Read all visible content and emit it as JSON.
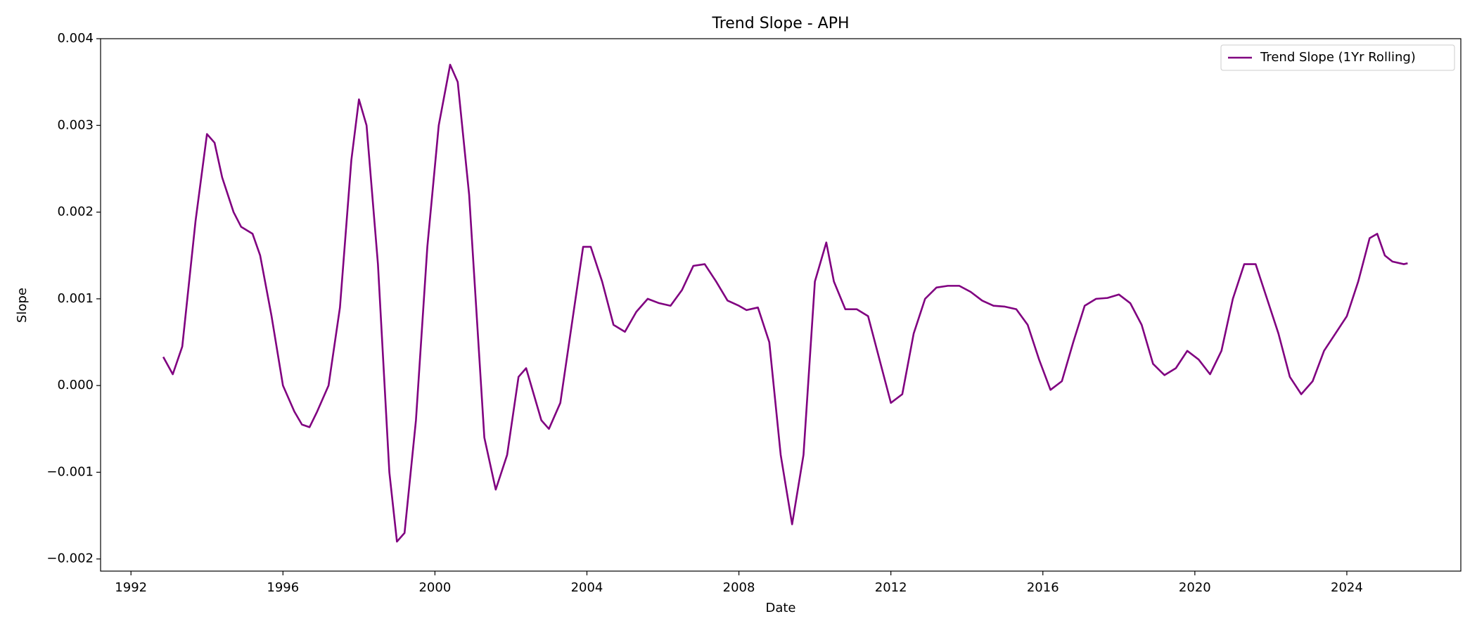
{
  "chart_data": {
    "type": "line",
    "title": "Trend Slope - APH",
    "x_label": "Date",
    "y_label": "Slope",
    "xlim": [
      1991.2,
      2027.0
    ],
    "xticks": [
      1992,
      1996,
      2000,
      2004,
      2008,
      2012,
      2016,
      2020,
      2024
    ],
    "ylim": [
      -0.00214,
      0.004
    ],
    "yticks": [
      {
        "value": -0.002,
        "label": "−0.002"
      },
      {
        "value": -0.001,
        "label": "−0.001"
      },
      {
        "value": 0,
        "label": "0.000"
      },
      0.001,
      0.002,
      0.003,
      0.004
    ],
    "legend": "upper right",
    "grid": false,
    "x": [
      1992.85,
      1993.1,
      1993.35,
      1993.7,
      1994.0,
      1994.2,
      1994.4,
      1994.7,
      1994.9,
      1995.2,
      1995.4,
      1995.7,
      1996.0,
      1996.3,
      1996.5,
      1996.7,
      1996.9,
      1997.2,
      1997.5,
      1997.8,
      1998.0,
      1998.2,
      1998.5,
      1998.8,
      1999.0,
      1999.2,
      1999.5,
      1999.8,
      2000.1,
      2000.4,
      2000.6,
      2000.9,
      2001.3,
      2001.6,
      2001.9,
      2002.2,
      2002.4,
      2002.6,
      2002.8,
      2003.0,
      2003.3,
      2003.6,
      2003.9,
      2004.1,
      2004.4,
      2004.7,
      2005.0,
      2005.3,
      2005.6,
      2005.9,
      2006.2,
      2006.5,
      2006.8,
      2007.1,
      2007.4,
      2007.7,
      2008.0,
      2008.2,
      2008.5,
      2008.8,
      2009.1,
      2009.4,
      2009.7,
      2010.0,
      2010.3,
      2010.5,
      2010.8,
      2011.1,
      2011.4,
      2011.7,
      2012.0,
      2012.3,
      2012.6,
      2012.9,
      2013.2,
      2013.5,
      2013.8,
      2014.1,
      2014.4,
      2014.7,
      2015.0,
      2015.3,
      2015.6,
      2015.9,
      2016.2,
      2016.5,
      2016.8,
      2017.1,
      2017.4,
      2017.7,
      2018.0,
      2018.3,
      2018.6,
      2018.9,
      2019.2,
      2019.5,
      2019.8,
      2020.1,
      2020.4,
      2020.7,
      2021.0,
      2021.3,
      2021.6,
      2021.9,
      2022.2,
      2022.5,
      2022.8,
      2023.1,
      2023.4,
      2023.7,
      2024.0,
      2024.3,
      2024.6,
      2024.8,
      2025.0,
      2025.2,
      2025.5,
      2025.6
    ],
    "series": [
      {
        "name": "Trend Slope (1Yr Rolling)",
        "color": "#800080",
        "values": [
          0.00033,
          0.00013,
          0.00045,
          0.0019,
          0.0029,
          0.0028,
          0.0024,
          0.002,
          0.00183,
          0.00175,
          0.0015,
          0.0008,
          0.0,
          -0.0003,
          -0.00045,
          -0.00048,
          -0.0003,
          0.0,
          0.0009,
          0.0026,
          0.0033,
          0.003,
          0.0014,
          -0.001,
          -0.0018,
          -0.0017,
          -0.0004,
          0.0016,
          0.003,
          0.0037,
          0.0035,
          0.0022,
          -0.0006,
          -0.0012,
          -0.0008,
          0.0001,
          0.0002,
          -0.0001,
          -0.0004,
          -0.0005,
          -0.0002,
          0.0007,
          0.0016,
          0.0016,
          0.0012,
          0.0007,
          0.00062,
          0.00085,
          0.001,
          0.00095,
          0.00092,
          0.0011,
          0.00138,
          0.0014,
          0.0012,
          0.00098,
          0.00092,
          0.00087,
          0.0009,
          0.0005,
          -0.0008,
          -0.0016,
          -0.0008,
          0.0012,
          0.00165,
          0.0012,
          0.00088,
          0.00088,
          0.0008,
          0.0003,
          -0.0002,
          -0.0001,
          0.0006,
          0.001,
          0.00113,
          0.00115,
          0.00115,
          0.00108,
          0.00098,
          0.00092,
          0.00091,
          0.00088,
          0.0007,
          0.0003,
          -5e-05,
          5e-05,
          0.0005,
          0.00092,
          0.001,
          0.00101,
          0.00105,
          0.00095,
          0.0007,
          0.00025,
          0.00012,
          0.0002,
          0.0004,
          0.0003,
          0.00013,
          0.0004,
          0.001,
          0.0014,
          0.0014,
          0.001,
          0.0006,
          0.0001,
          -0.0001,
          5e-05,
          0.0004,
          0.0006,
          0.0008,
          0.0012,
          0.0017,
          0.00175,
          0.0015,
          0.00143,
          0.0014,
          0.00141
        ]
      }
    ]
  }
}
